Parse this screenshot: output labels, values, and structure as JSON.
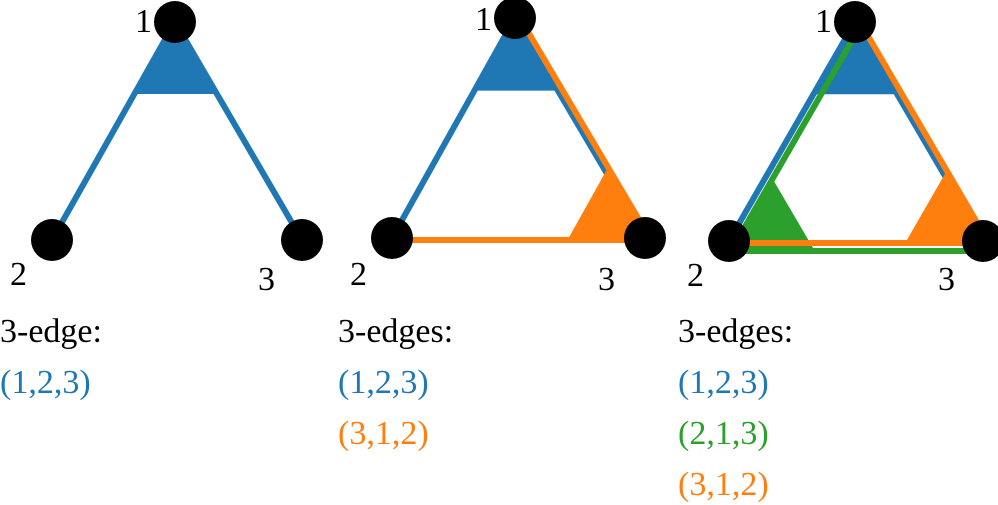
{
  "panels": [
    {
      "nodes": [
        {
          "label": "1"
        },
        {
          "label": "2"
        },
        {
          "label": "3"
        }
      ],
      "heading": "3-edge:",
      "edges": [
        {
          "label": "(1,2,3)",
          "color": "#1f77b4"
        }
      ]
    },
    {
      "nodes": [
        {
          "label": "1"
        },
        {
          "label": "2"
        },
        {
          "label": "3"
        }
      ],
      "heading": "3-edges:",
      "edges": [
        {
          "label": "(1,2,3)",
          "color": "#1f77b4"
        },
        {
          "label": "(3,1,2)",
          "color": "#ff7f0e"
        }
      ]
    },
    {
      "nodes": [
        {
          "label": "1"
        },
        {
          "label": "2"
        },
        {
          "label": "3"
        }
      ],
      "heading": "3-edges:",
      "edges": [
        {
          "label": "(1,2,3)",
          "color": "#1f77b4"
        },
        {
          "label": "(2,1,3)",
          "color": "#2ca02c"
        },
        {
          "label": "(3,1,2)",
          "color": "#ff7f0e"
        }
      ]
    }
  ]
}
